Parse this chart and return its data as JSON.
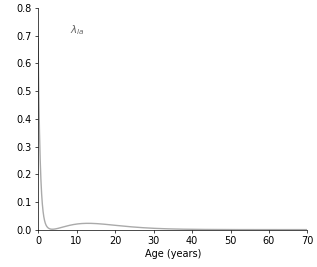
{
  "xlabel": "Age (years)",
  "annotation": "λₖₐ",
  "xlim": [
    0,
    70
  ],
  "ylim": [
    0,
    0.8
  ],
  "xticks": [
    0,
    10,
    20,
    30,
    40,
    50,
    60,
    70
  ],
  "yticks": [
    0.0,
    0.1,
    0.2,
    0.3,
    0.4,
    0.5,
    0.6,
    0.7,
    0.8
  ],
  "line_color": "#aaaaaa",
  "line_width": 1.0,
  "bg_color": "#ffffff",
  "figsize": [
    3.17,
    2.67
  ],
  "dpi": 100,
  "annotation_text": "λₖₐ"
}
